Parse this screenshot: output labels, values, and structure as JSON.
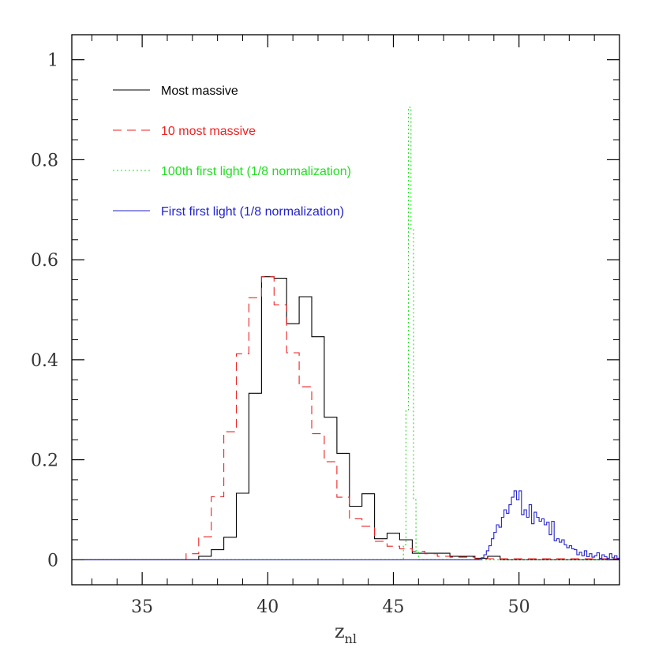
{
  "chart_data": {
    "type": "line",
    "step": true,
    "title": "",
    "xlabel": "z",
    "xlabel_subscript": "nl",
    "ylabel": "",
    "xlim": [
      32.2,
      54.0
    ],
    "ylim": [
      -0.05,
      1.05
    ],
    "x_ticks": [
      35,
      40,
      45,
      50
    ],
    "x_tick_labels": [
      "35",
      "40",
      "45",
      "50"
    ],
    "y_ticks": [
      0,
      0.2,
      0.4,
      0.6,
      0.8,
      1
    ],
    "y_tick_labels": [
      "0",
      "0.2",
      "0.4",
      "0.6",
      "0.8",
      "1"
    ],
    "grid": false,
    "legend_position": "top-left",
    "series": [
      {
        "name": "Most massive",
        "color": "#000000",
        "dash": "solid",
        "x": [
          32.7,
          37.25,
          37.75,
          38.25,
          38.75,
          39.25,
          39.75,
          40.25,
          40.75,
          41.25,
          41.75,
          42.25,
          42.75,
          43.25,
          43.75,
          44.25,
          44.75,
          45.25,
          45.75,
          46.25,
          47.25,
          48.25,
          48.75,
          49.25,
          54.0
        ],
        "y": [
          0,
          0.007,
          0.02,
          0.045,
          0.133,
          0.333,
          0.566,
          0.563,
          0.472,
          0.526,
          0.446,
          0.285,
          0.213,
          0.107,
          0.132,
          0.042,
          0.053,
          0.04,
          0.013,
          0.013,
          0.007,
          0.003,
          0.007,
          0,
          0
        ]
      },
      {
        "name": "10 most massive",
        "color": "#ee2222",
        "dash": "dashed",
        "x": [
          32.7,
          36.75,
          37.25,
          37.75,
          38.25,
          38.75,
          39.25,
          39.75,
          40.25,
          40.75,
          41.25,
          41.75,
          42.25,
          42.75,
          43.25,
          43.75,
          44.25,
          44.75,
          45.25,
          45.75,
          46.25,
          46.75,
          47.25,
          48.25,
          54.0
        ],
        "y": [
          0,
          0.012,
          0.046,
          0.126,
          0.256,
          0.412,
          0.524,
          0.566,
          0.51,
          0.414,
          0.346,
          0.252,
          0.196,
          0.125,
          0.082,
          0.067,
          0.037,
          0.027,
          0.022,
          0.017,
          0.012,
          0.007,
          0.005,
          0.002,
          0
        ]
      },
      {
        "name": "100th first light (1/8 normalization)",
        "color": "#22dd22",
        "dash": "dotted",
        "x": [
          32.7,
          45.4,
          45.5,
          45.6,
          45.7,
          45.8,
          45.9,
          46.0,
          54.0
        ],
        "y": [
          0,
          0.03,
          0.298,
          0.905,
          0.66,
          0.12,
          0.018,
          0,
          0
        ]
      },
      {
        "name": "First first light (1/8 normalization)",
        "color": "#2222cc",
        "dash": "solid",
        "x": [
          32.7,
          48.5,
          48.6,
          48.7,
          48.8,
          48.9,
          49.0,
          49.1,
          49.2,
          49.3,
          49.4,
          49.5,
          49.6,
          49.7,
          49.8,
          49.9,
          50.0,
          50.1,
          50.2,
          50.3,
          50.4,
          50.5,
          50.6,
          50.7,
          50.8,
          50.9,
          51.0,
          51.1,
          51.2,
          51.3,
          51.4,
          51.5,
          51.6,
          51.7,
          51.8,
          51.9,
          52.0,
          52.1,
          52.2,
          52.3,
          52.4,
          52.5,
          52.6,
          52.7,
          52.8,
          52.9,
          53.0,
          53.1,
          53.2,
          53.3,
          53.4,
          53.5,
          53.6,
          53.7,
          53.8,
          53.9,
          54.0
        ],
        "y": [
          0,
          0.004,
          0.01,
          0.018,
          0.028,
          0.042,
          0.055,
          0.07,
          0.065,
          0.085,
          0.1,
          0.093,
          0.11,
          0.125,
          0.138,
          0.12,
          0.138,
          0.09,
          0.1,
          0.085,
          0.11,
          0.072,
          0.095,
          0.085,
          0.077,
          0.082,
          0.07,
          0.075,
          0.05,
          0.077,
          0.038,
          0.042,
          0.035,
          0.04,
          0.03,
          0.024,
          0.028,
          0.022,
          0.02,
          0.01,
          0.015,
          0.008,
          0.018,
          0.006,
          0.012,
          0.005,
          0.008,
          0.014,
          0.003,
          0.01,
          0.006,
          0.003,
          0.012,
          0.004,
          0.008,
          0.003,
          0.006
        ]
      }
    ]
  }
}
